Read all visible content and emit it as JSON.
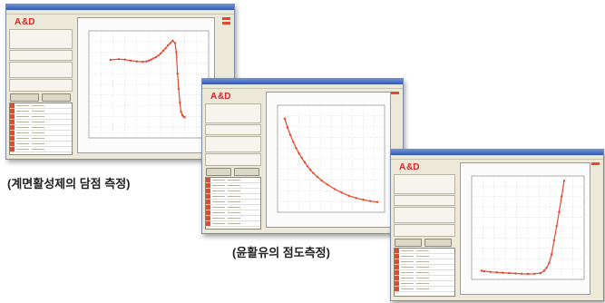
{
  "captions": {
    "surfactant": "(계면활성제의 담점  측정)",
    "lubricant": "(윤활유의 점도측정)"
  },
  "colors": {
    "curve": "#e8452c",
    "grid": "#c9c9c9",
    "logo_red": "#d42a2a"
  },
  "charts": [
    {
      "id": "surfactant",
      "chart_data": {
        "type": "line",
        "x": [
          18,
          25,
          30,
          35,
          40,
          45,
          48,
          50,
          52,
          54,
          56,
          58,
          60,
          62,
          64,
          66,
          68,
          70,
          72,
          73,
          74,
          75,
          76,
          77,
          78,
          79,
          80
        ],
        "y": [
          2.1,
          2.15,
          2.12,
          2.05,
          2.0,
          1.98,
          2.0,
          2.05,
          2.12,
          2.2,
          2.28,
          2.38,
          2.52,
          2.7,
          2.85,
          3.05,
          3.2,
          3.35,
          3.2,
          2.6,
          1.2,
          0.2,
          -0.7,
          -1.3,
          -1.5,
          -1.6,
          -1.65
        ],
        "xlim": [
          0,
          100
        ],
        "ylim": [
          -3,
          4
        ]
      }
    },
    {
      "id": "lubricant",
      "chart_data": {
        "type": "line",
        "x": [
          20,
          22,
          24,
          26,
          28,
          30,
          32,
          34,
          36,
          38,
          40,
          43,
          46,
          50,
          55,
          60,
          65,
          70,
          75,
          80,
          85
        ],
        "y": [
          2.7,
          2.5,
          2.33,
          2.18,
          2.04,
          1.92,
          1.82,
          1.72,
          1.63,
          1.55,
          1.48,
          1.39,
          1.31,
          1.22,
          1.12,
          1.04,
          0.97,
          0.92,
          0.88,
          0.85,
          0.83
        ],
        "xlim": [
          15,
          90
        ],
        "ylim": [
          0.6,
          3.0
        ]
      }
    },
    {
      "id": "oil",
      "chart_data": {
        "type": "line",
        "x": [
          8,
          10,
          15,
          20,
          25,
          30,
          35,
          40,
          45,
          50,
          55,
          58,
          60,
          62,
          64,
          66,
          68,
          70,
          72,
          74
        ],
        "y": [
          0.55,
          0.52,
          0.48,
          0.45,
          0.42,
          0.4,
          0.38,
          0.36,
          0.35,
          0.36,
          0.4,
          0.55,
          0.75,
          1.05,
          1.6,
          2.5,
          3.4,
          4.3,
          5.3,
          6.3
        ],
        "xlim": [
          0,
          90
        ],
        "ylim": [
          0,
          6.6
        ]
      }
    }
  ]
}
